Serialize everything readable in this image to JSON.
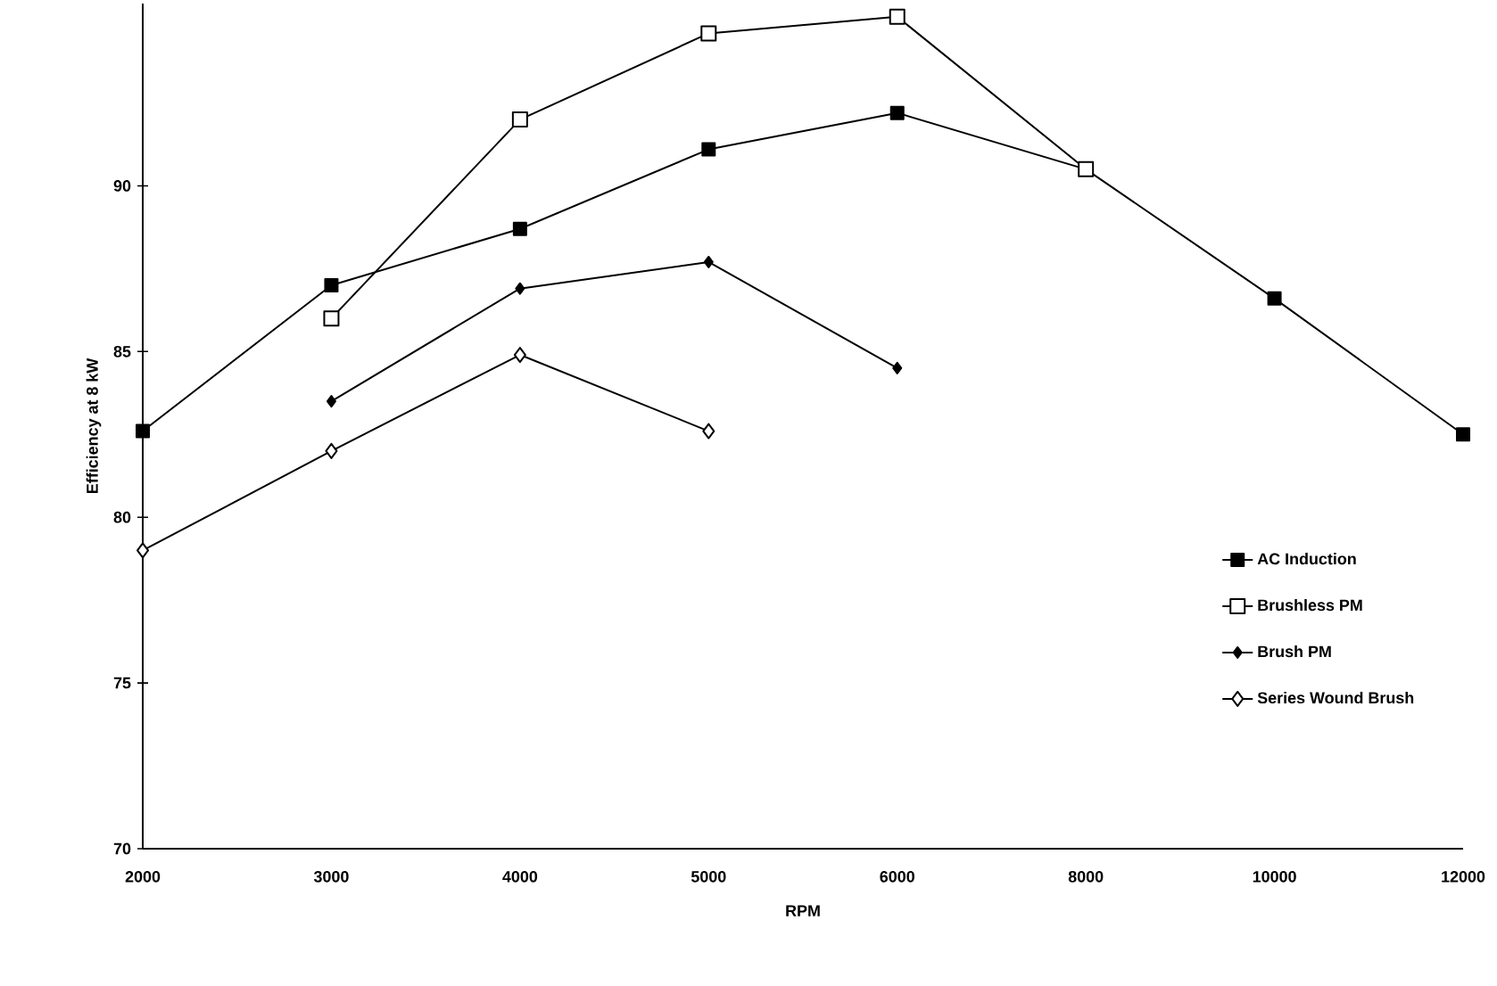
{
  "chart_data": {
    "type": "line",
    "xlabel": "RPM",
    "ylabel": "Efficiency at 8 kW",
    "categories": [
      "2000",
      "3000",
      "4000",
      "5000",
      "6000",
      "8000",
      "10000",
      "12000"
    ],
    "ylim": [
      70,
      95.5
    ],
    "yticks": [
      70,
      75,
      80,
      85,
      90
    ],
    "legend": "bottom right",
    "grid": false,
    "series": [
      {
        "name": "AC Induction",
        "color": "#000000",
        "marker": "square",
        "values": [
          82.6,
          87.0,
          88.7,
          91.1,
          92.2,
          90.5,
          86.6,
          82.5
        ]
      },
      {
        "name": "Brushless PM",
        "color": "#000000",
        "marker": "square-open",
        "values": [
          null,
          86.0,
          92.0,
          94.6,
          95.1,
          90.5,
          null,
          null
        ]
      },
      {
        "name": "Brush PM",
        "color": "#000000",
        "marker": "diamond",
        "values": [
          null,
          83.5,
          86.9,
          87.7,
          84.5,
          null,
          null,
          null
        ]
      },
      {
        "name": "Series Wound Brush",
        "color": "#000000",
        "marker": "diamond-open",
        "values": [
          79.0,
          82.0,
          84.9,
          82.6,
          null,
          null,
          null,
          null
        ]
      }
    ]
  }
}
